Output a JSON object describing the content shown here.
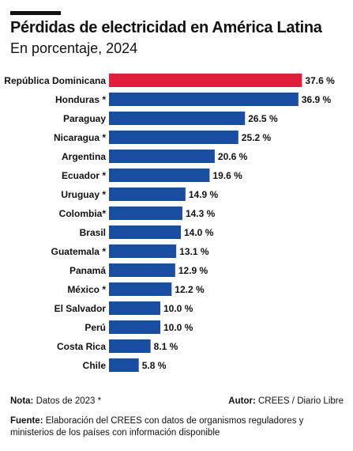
{
  "header": {
    "title": "Pérdidas de electricidad en América Latina",
    "subtitle": "En porcentaje, 2024"
  },
  "footer": {
    "note_label": "Nota:",
    "note_text": "Datos de 2023 *",
    "author_label": "Autor:",
    "author_text": "CREES / Diario Libre",
    "source_label": "Fuente:",
    "source_text": "Elaboración del CREES con datos de organismos reguladores y ministerios de los países con información disponible"
  },
  "colors": {
    "highlight": "#e01e3c",
    "bar": "#1a4ea3",
    "text": "#111111"
  },
  "chart_data": {
    "type": "bar",
    "orientation": "horizontal",
    "categories": [
      "República Dominicana",
      "Honduras *",
      "Paraguay",
      "Nicaragua *",
      "Argentina",
      "Ecuador *",
      "Uruguay *",
      "Colombia*",
      "Brasil",
      "Guatemala *",
      "Panamá",
      "México *",
      "El Salvador",
      "Perú",
      "Costa Rica",
      "Chile"
    ],
    "values": [
      37.6,
      36.9,
      26.5,
      25.2,
      20.6,
      19.6,
      14.9,
      14.3,
      14.0,
      13.1,
      12.9,
      12.2,
      10.0,
      10.0,
      8.1,
      5.8
    ],
    "value_labels": [
      "37.6 %",
      "36.9 %",
      "26.5 %",
      "25.2 %",
      "20.6 %",
      "19.6 %",
      "14.9 %",
      "14.3 %",
      "14.0 %",
      "13.1 %",
      "12.9 %",
      "12.2 %",
      "10.0 %",
      "10.0 %",
      "8.1 %",
      "5.8 %"
    ],
    "highlight_index": 0
  }
}
